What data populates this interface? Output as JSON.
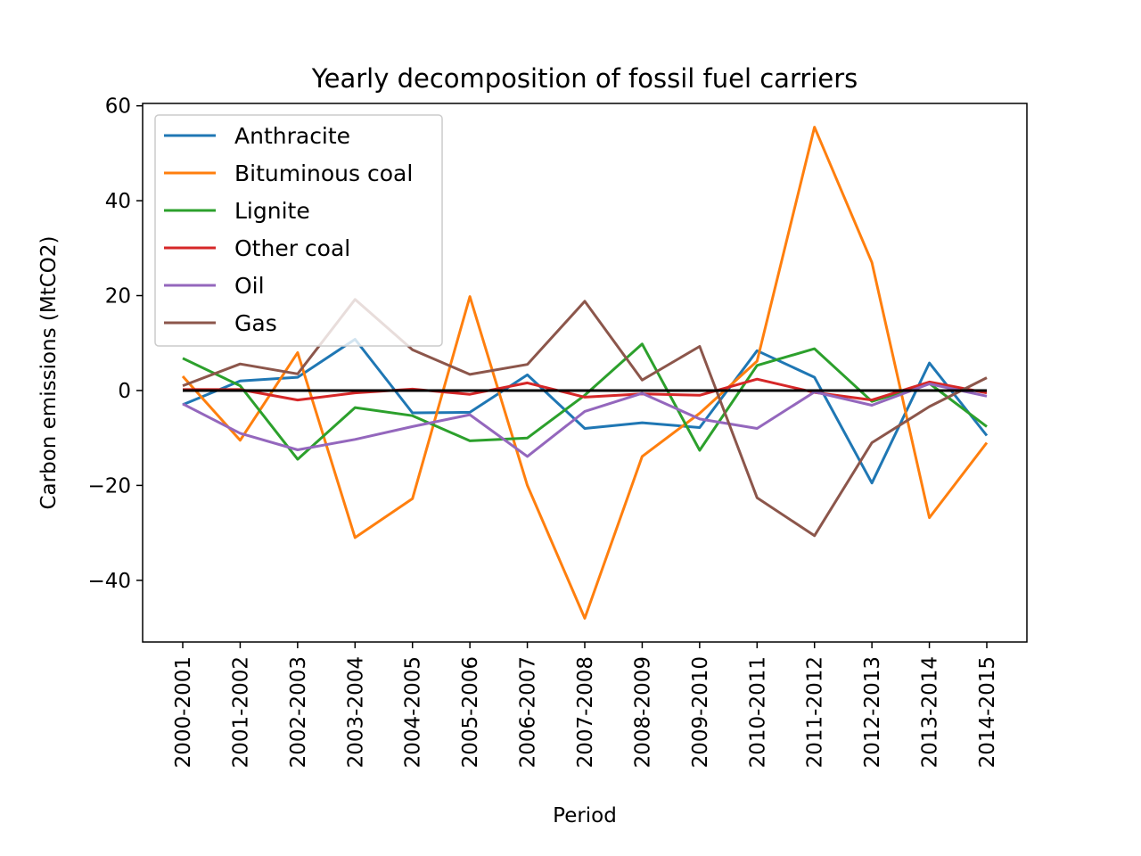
{
  "chart_data": {
    "type": "line",
    "title": "Yearly decomposition of fossil fuel carriers",
    "xlabel": "Period",
    "ylabel": "Carbon emissions (MtCO2)",
    "ylim": [
      -53,
      60.5
    ],
    "yticks": [
      -40,
      -20,
      0,
      20,
      40,
      60
    ],
    "ytick_labels": [
      "−40",
      "−20",
      "0",
      "20",
      "40",
      "60"
    ],
    "legend_position": "upper-left",
    "grid": false,
    "categories": [
      "2000-2001",
      "2001-2002",
      "2002-2003",
      "2003-2004",
      "2004-2005",
      "2005-2006",
      "2006-2007",
      "2007-2008",
      "2008-2009",
      "2009-2010",
      "2010-2011",
      "2011-2012",
      "2012-2013",
      "2013-2014",
      "2014-2015"
    ],
    "series": [
      {
        "name": "Anthracite",
        "color": "#1f77b4",
        "values": [
          -3,
          2,
          2.8,
          10.8,
          -4.7,
          -4.6,
          3.3,
          -8,
          -6.8,
          -7.8,
          8.4,
          2.8,
          -19.5,
          5.8,
          -9.5
        ]
      },
      {
        "name": "Bituminous coal",
        "color": "#ff7f0e",
        "values": [
          3,
          -10.5,
          8,
          -31,
          -22.8,
          19.8,
          -20,
          -48,
          -13.9,
          -4.8,
          6.2,
          55.5,
          27,
          -26.8,
          -11
        ]
      },
      {
        "name": "Lignite",
        "color": "#2ca02c",
        "values": [
          6.8,
          1,
          -14.5,
          -3.6,
          -5.3,
          -10.6,
          -10,
          -1,
          9.8,
          -12.6,
          5.3,
          8.8,
          -2.3,
          1.5,
          -7.6
        ]
      },
      {
        "name": "Other coal",
        "color": "#d62728",
        "values": [
          0.2,
          0.2,
          -2,
          -0.5,
          0.3,
          -0.8,
          1.6,
          -1.4,
          -0.7,
          -1,
          2.4,
          -0.4,
          -2,
          1.8,
          -0.5
        ]
      },
      {
        "name": "Oil",
        "color": "#9467bd",
        "values": [
          -2.8,
          -9,
          -12.5,
          -10.3,
          -7.6,
          -5.1,
          -13.9,
          -4.4,
          -0.6,
          -6,
          -8,
          -0.3,
          -3.1,
          1.4,
          -1.2
        ]
      },
      {
        "name": "Gas",
        "color": "#8c564b",
        "values": [
          1,
          5.6,
          3.5,
          19.2,
          8.6,
          3.4,
          5.5,
          18.8,
          2.2,
          9.3,
          -22.6,
          -30.6,
          -11,
          -3.4,
          2.7
        ]
      }
    ],
    "reference_line": {
      "y": 0,
      "color": "#000000"
    }
  }
}
